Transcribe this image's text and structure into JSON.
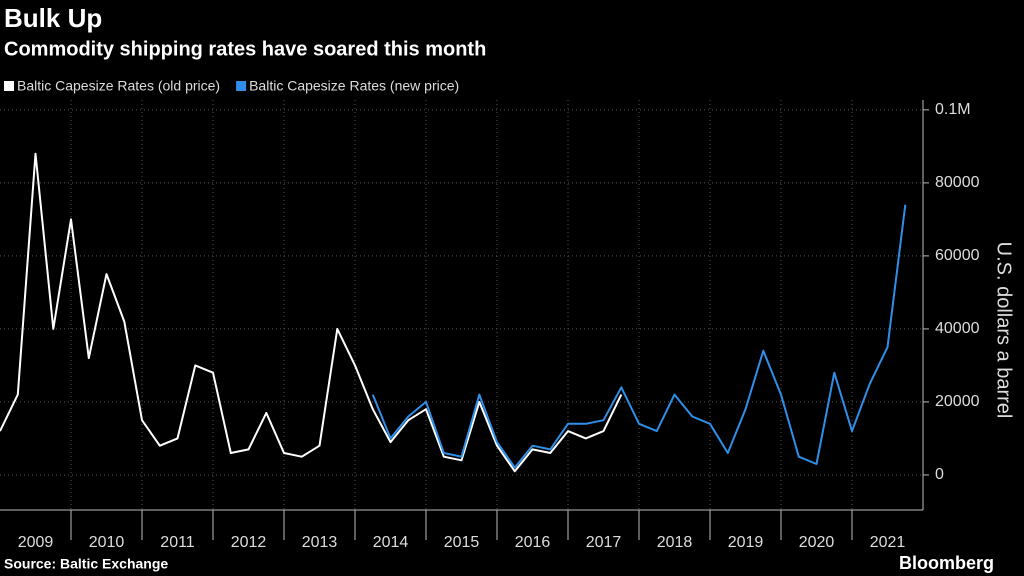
{
  "chart_data": {
    "type": "line",
    "title": "Bulk Up",
    "subtitle": "Commodity shipping rates have soared this month",
    "y_label": "U.S. dollars a barrel",
    "source": "Source: Baltic Exchange",
    "brand": "Bloomberg",
    "x": [
      2009,
      2009.25,
      2009.5,
      2009.75,
      2010,
      2010.25,
      2010.5,
      2010.75,
      2011,
      2011.25,
      2011.5,
      2011.75,
      2012,
      2012.25,
      2012.5,
      2012.75,
      2013,
      2013.25,
      2013.5,
      2013.75,
      2014,
      2014.25,
      2014.5,
      2014.75,
      2015,
      2015.25,
      2015.5,
      2015.75,
      2016,
      2016.25,
      2016.5,
      2016.75,
      2017,
      2017.25,
      2017.5,
      2017.75,
      2018,
      2018.25,
      2018.5,
      2018.75,
      2019,
      2019.25,
      2019.5,
      2019.75,
      2020,
      2020.25,
      2020.5,
      2020.75,
      2021,
      2021.25,
      2021.5,
      2021.75
    ],
    "series": [
      {
        "name": "Baltic Capesize Rates (old price)",
        "color": "#ffffff",
        "values": [
          12000,
          22000,
          88000,
          40000,
          70000,
          32000,
          55000,
          42000,
          15000,
          8000,
          10000,
          30000,
          28000,
          6000,
          7000,
          17000,
          6000,
          5000,
          8000,
          40000,
          30000,
          18000,
          9000,
          15000,
          18000,
          5000,
          4000,
          20000,
          8000,
          1000,
          7000,
          6000,
          12000,
          10000,
          12000,
          22000,
          null,
          null,
          null,
          null,
          null,
          null,
          null,
          null,
          null,
          null,
          null,
          null,
          null,
          null,
          null,
          null
        ]
      },
      {
        "name": "Baltic Capesize Rates (new price)",
        "color": "#2f8fe8",
        "values": [
          null,
          null,
          null,
          null,
          null,
          null,
          null,
          null,
          null,
          null,
          null,
          null,
          null,
          null,
          null,
          null,
          null,
          null,
          null,
          null,
          null,
          22000,
          10000,
          16000,
          20000,
          6000,
          5000,
          22000,
          9000,
          2000,
          8000,
          7000,
          14000,
          14000,
          15000,
          24000,
          14000,
          12000,
          22000,
          16000,
          14000,
          6000,
          18000,
          34000,
          22000,
          5000,
          3000,
          28000,
          12000,
          25000,
          35000,
          74000
        ]
      }
    ],
    "xlim": [
      2009,
      2022
    ],
    "xticks": [
      2009,
      2010,
      2011,
      2012,
      2013,
      2014,
      2015,
      2016,
      2017,
      2018,
      2019,
      2020,
      2021
    ],
    "ylim": [
      -9600,
      102700
    ],
    "yticks": [
      0,
      20000,
      40000,
      60000,
      80000,
      {
        "value": 100000,
        "label": "0.1M"
      }
    ],
    "grid": true
  }
}
